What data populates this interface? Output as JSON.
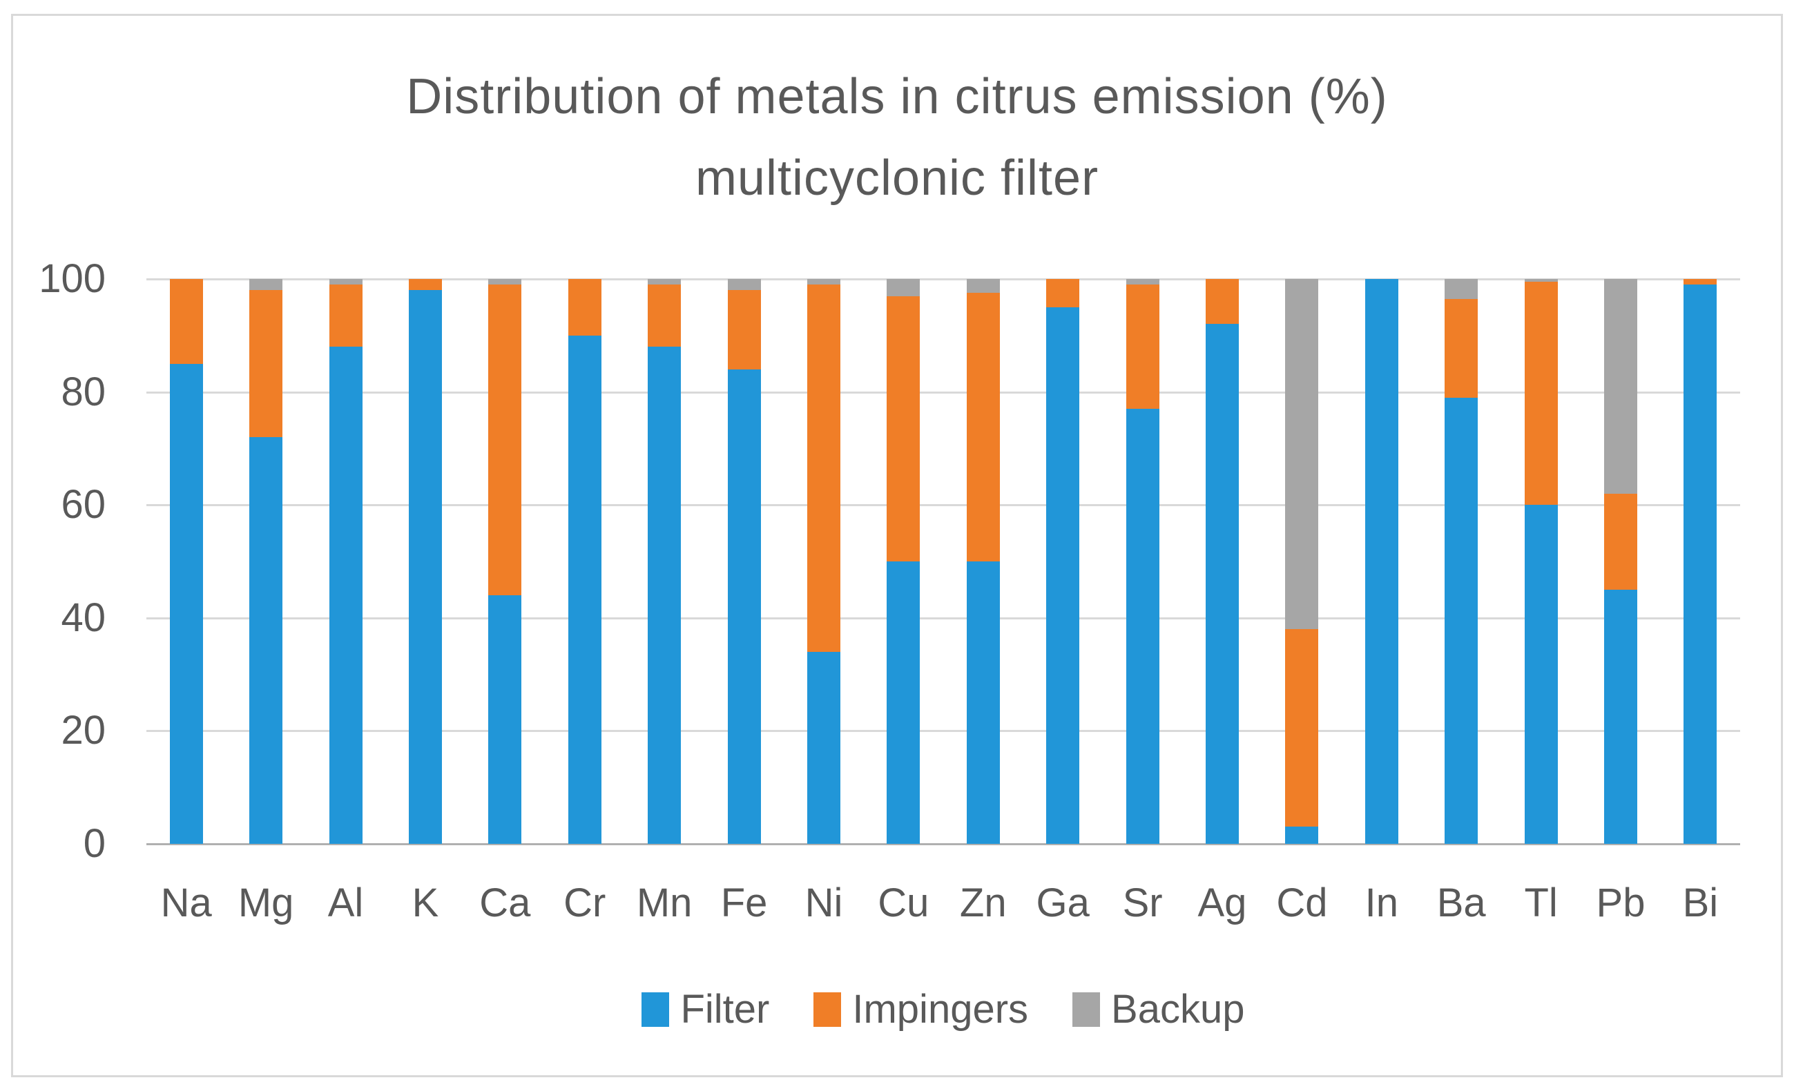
{
  "title": {
    "line1": "Distribution of metals in citrus emission (%)",
    "line2": "multicyclonic filter"
  },
  "y_axis": {
    "ticks": [
      0,
      20,
      40,
      60,
      80,
      100
    ]
  },
  "colors": {
    "filter_blue": "#2196d8",
    "impingers_orange": "#f07e27",
    "backup_gray": "#a6a6a6",
    "gridline": "#d9d9d9",
    "axis_line": "#b0b0b0",
    "text": "#595959",
    "border": "#d9d9d9"
  },
  "chart_data": {
    "type": "bar",
    "stacked": true,
    "title": "Distribution of metals in citrus emission (%) multicyclonic filter",
    "xlabel": "",
    "ylabel": "",
    "ylim": [
      0,
      100
    ],
    "grid": true,
    "legend_position": "bottom",
    "categories": [
      "Na",
      "Mg",
      "Al",
      "K",
      "Ca",
      "Cr",
      "Mn",
      "Fe",
      "Ni",
      "Cu",
      "Zn",
      "Ga",
      "Sr",
      "Ag",
      "Cd",
      "In",
      "Ba",
      "Tl",
      "Pb",
      "Bi"
    ],
    "series": [
      {
        "name": "Filter",
        "color": "#2196d8",
        "values": [
          85,
          72,
          88,
          98,
          44,
          90,
          88,
          84,
          34,
          50,
          50,
          95,
          77,
          92,
          3,
          100,
          79,
          60,
          45,
          99
        ]
      },
      {
        "name": "Impingers",
        "color": "#f07e27",
        "values": [
          15,
          26,
          11,
          2,
          55,
          10,
          11,
          14,
          65,
          47,
          47.5,
          5,
          22,
          8,
          35,
          0,
          17.5,
          39.5,
          17,
          1
        ]
      },
      {
        "name": "Backup",
        "color": "#a6a6a6",
        "values": [
          0,
          2,
          1,
          0,
          1,
          0,
          1,
          2,
          1,
          3,
          2.5,
          0,
          1,
          0,
          62,
          0,
          3.5,
          0.5,
          38,
          0
        ]
      }
    ]
  }
}
